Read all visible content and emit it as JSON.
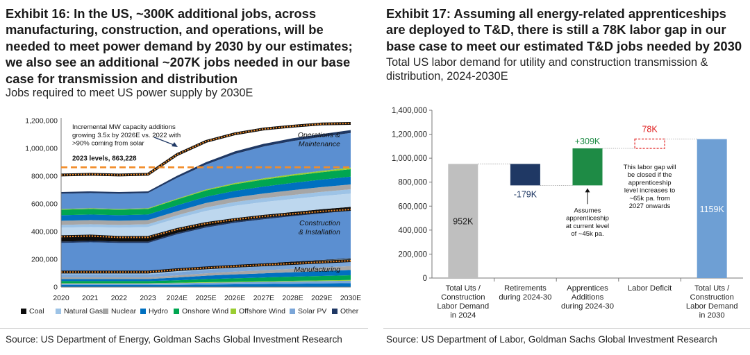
{
  "exhibit16": {
    "title": "Exhibit 16: In the US, ~300K additional jobs, across manufacturing, construction, and operations, will be needed to meet power demand by 2030 by our estimates; we also see an additional ~207K jobs needed in our base case for transmission and distribution",
    "subtitle": "Jobs required to meet US power supply by 2030E",
    "source": "Source: US Department of Energy, Goldman Sachs Global Investment Research"
  },
  "exhibit17": {
    "title": "Exhibit 17: Assuming all energy-related apprenticeships are deployed to T&D, there is still a 78K labor gap in our base case to meet our estimated T&D jobs needed by 2030",
    "subtitle": "Total US labor demand for utility and construction transmission & distribution, 2024-2030E",
    "source": "Source: US Department of Labor, Goldman Sachs Global Investment Research"
  },
  "chart_data": [
    {
      "type": "area",
      "stacked": true,
      "x": [
        "2020",
        "2021",
        "2022",
        "2023",
        "2024E",
        "2025E",
        "2026E",
        "2027E",
        "2028E",
        "2029E",
        "2030E"
      ],
      "ylim": [
        0,
        1200000
      ],
      "yticks": [
        "0",
        "200,000",
        "400,000",
        "600,000",
        "800,000",
        "1,000,000",
        "1,200,000"
      ],
      "grid": false,
      "legend_position": "bottom",
      "bands": [
        {
          "name": "Manufacturing",
          "series": [
            {
              "name": "Hydro",
              "color": "#0070c0",
              "values": [
                15000,
                15000,
                15000,
                15000,
                16000,
                18000,
                20000,
                22000,
                24000,
                26000,
                28000
              ]
            },
            {
              "name": "Solar PV",
              "color": "#7ba6d8",
              "values": [
                10000,
                10000,
                10000,
                10000,
                12000,
                13000,
                14000,
                15000,
                16000,
                17000,
                18000
              ]
            },
            {
              "name": "Offshore Wind",
              "color": "#9acd32",
              "values": [
                3000,
                3000,
                3000,
                3000,
                3000,
                4000,
                4000,
                4000,
                5000,
                5000,
                5000
              ]
            },
            {
              "name": "Onshore Wind",
              "color": "#00a651",
              "values": [
                15000,
                15000,
                15000,
                15000,
                18000,
                22000,
                25000,
                28000,
                30000,
                32000,
                34000
              ]
            },
            {
              "name": "Hydro",
              "color": "#0070c0",
              "values": [
                15000,
                15000,
                15000,
                15000,
                20000,
                25000,
                28000,
                30000,
                32000,
                35000,
                38000
              ]
            },
            {
              "name": "Nuclear",
              "color": "#a6a6a6",
              "values": [
                12000,
                12000,
                12000,
                12000,
                15000,
                17000,
                20000,
                22000,
                24000,
                26000,
                28000
              ]
            },
            {
              "name": "Solar PV",
              "color": "#7ba6d8",
              "values": [
                20000,
                20000,
                20000,
                20000,
                22000,
                25000,
                27000,
                29000,
                30000,
                32000,
                34000
              ]
            },
            {
              "name": "Natural Gas",
              "color": "#9dc3e6",
              "values": [
                10000,
                10000,
                10000,
                10000,
                12000,
                14000,
                15000,
                16000,
                17000,
                18000,
                19000
              ]
            },
            {
              "name": "Coal",
              "color": "#0d0d0d",
              "values": [
                8000,
                8000,
                8000,
                8000,
                7000,
                6000,
                6000,
                5000,
                5000,
                4000,
                4000
              ]
            }
          ]
        },
        {
          "name": "Construction & Installation",
          "series": [
            {
              "name": "Solar PV",
              "color": "#5b8fd1",
              "values": [
                210000,
                215000,
                210000,
                210000,
                255000,
                285000,
                305000,
                318000,
                328000,
                336000,
                342000
              ]
            },
            {
              "name": "Other",
              "color": "#1f3864",
              "values": [
                10000,
                10000,
                10000,
                10000,
                10000,
                10000,
                10000,
                10000,
                10000,
                10000,
                10000
              ]
            },
            {
              "name": "Coal",
              "color": "#0d0d0d",
              "values": [
                35000,
                35000,
                30000,
                30000,
                25000,
                25000,
                22000,
                22000,
                20000,
                20000,
                18000
              ]
            }
          ]
        },
        {
          "name": "Operations & Maintenance",
          "series": [
            {
              "name": "Solar PV",
              "color": "#bdd7ee",
              "values": [
                65000,
                65000,
                70000,
                75000,
                80000,
                85000,
                90000,
                92000,
                94000,
                95000,
                96000
              ]
            },
            {
              "name": "Natural Gas",
              "color": "#9dc3e6",
              "values": [
                20000,
                20000,
                20000,
                20000,
                22000,
                25000,
                27000,
                28000,
                29000,
                30000,
                31000
              ]
            },
            {
              "name": "Nuclear",
              "color": "#a6a6a6",
              "values": [
                30000,
                30000,
                30000,
                30000,
                30000,
                32000,
                33000,
                34000,
                35000,
                35000,
                35000
              ]
            },
            {
              "name": "Hydro",
              "color": "#0070c0",
              "values": [
                40000,
                40000,
                40000,
                40000,
                42000,
                45000,
                48000,
                50000,
                52000,
                54000,
                56000
              ]
            },
            {
              "name": "Onshore Wind",
              "color": "#00a651",
              "values": [
                40000,
                40000,
                40000,
                40000,
                42000,
                45000,
                48000,
                50000,
                52000,
                53000,
                54000
              ]
            },
            {
              "name": "Offshore Wind",
              "color": "#9acd32",
              "values": [
                5000,
                5000,
                5000,
                5000,
                6000,
                7000,
                8000,
                9000,
                10000,
                10000,
                11000
              ]
            },
            {
              "name": "Solar PV",
              "color": "#5b8fd1",
              "values": [
                110000,
                110000,
                110000,
                110000,
                150000,
                180000,
                210000,
                230000,
                240000,
                245000,
                250000
              ]
            },
            {
              "name": "Other",
              "color": "#1f3864",
              "values": [
                12000,
                12000,
                12000,
                12000,
                15000,
                17000,
                18000,
                19000,
                20000,
                20000,
                21000
              ]
            }
          ]
        }
      ],
      "band_labels": {
        "manufacturing": "Manufacturing",
        "construction": "Construction\n& Installation",
        "operations": "Operations &\nMaintenance"
      },
      "reference_line": {
        "value": 863228,
        "label": "2023 levels, 863,228",
        "color": "#f28c28"
      },
      "dotted_boundaries": [
        [
          108000,
          108000,
          108000,
          108000,
          125000,
          138000,
          150000,
          160000,
          170000,
          180000,
          190000
        ],
        [
          363000,
          368000,
          358000,
          358000,
          415000,
          458000,
          487000,
          510000,
          528000,
          546000,
          560000
        ],
        [
          808000,
          813000,
          808000,
          813000,
          955000,
          1050000,
          1105000,
          1140000,
          1160000,
          1176000,
          1180000
        ]
      ],
      "annotation": "Incremental MW capacity additions\ngrowing 3.5x by 2026E vs. 2022 with\n>90% coming from solar",
      "legend": [
        {
          "name": "Coal",
          "color": "#0d0d0d"
        },
        {
          "name": "Natural Gas",
          "color": "#9dc3e6"
        },
        {
          "name": "Nuclear",
          "color": "#a6a6a6"
        },
        {
          "name": "Hydro",
          "color": "#0070c0"
        },
        {
          "name": "Onshore Wind",
          "color": "#00a651"
        },
        {
          "name": "Offshore Wind",
          "color": "#9acd32"
        },
        {
          "name": "Solar PV",
          "color": "#7ba6d8"
        },
        {
          "name": "Other",
          "color": "#1f3864"
        }
      ]
    },
    {
      "type": "bar",
      "subtype": "waterfall",
      "ylim": [
        0,
        1400000
      ],
      "yticks": [
        "0",
        "200,000",
        "400,000",
        "600,000",
        "800,000",
        "1,000,000",
        "1,200,000",
        "1,400,000"
      ],
      "categories": [
        "Total Uts /\nConstruction\nLabor Demand\nin 2024",
        "Retirements\nduring 2024-30",
        "Apprentices\nAdditions\nduring 2024-30",
        "Labor Deficit",
        "Total Uts /\nConstruction\nLabor Demand\nin 2030"
      ],
      "bars": [
        {
          "start": 0,
          "end": 952000,
          "color": "#bfbfbf",
          "label": "952K",
          "style": "solid"
        },
        {
          "start": 952000,
          "end": 773000,
          "color": "#1f3864",
          "label": "-179K",
          "style": "solid"
        },
        {
          "start": 773000,
          "end": 1082000,
          "color": "#1e8b45",
          "label": "+309K",
          "style": "solid"
        },
        {
          "start": 1082000,
          "end": 1160000,
          "color": "#e02020",
          "label": "78K",
          "style": "dashed"
        },
        {
          "start": 0,
          "end": 1159000,
          "color": "#6e9fd4",
          "label": "1159K",
          "style": "solid"
        }
      ],
      "annotations": [
        "Assumes\napprenticeship\nat current level\nof ~45k pa.",
        "This labor gap will\nbe closed if the\napprenticeship\nlevel increases to\n~65k pa. from\n2027 onwards"
      ]
    }
  ]
}
